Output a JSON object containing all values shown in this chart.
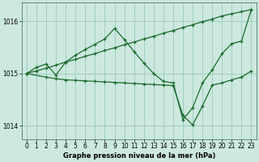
{
  "background_color": "#cce8df",
  "grid_color": "#99ccbb",
  "line_color": "#1a6b2a",
  "xlabel": "Graphe pression niveau de la mer (hPa)",
  "xlim": [
    -0.5,
    23.5
  ],
  "ylim": [
    1013.75,
    1016.35
  ],
  "yticks": [
    1014,
    1015,
    1016
  ],
  "xticks": [
    0,
    1,
    2,
    3,
    4,
    5,
    6,
    7,
    8,
    9,
    10,
    11,
    12,
    13,
    14,
    15,
    16,
    17,
    18,
    19,
    20,
    21,
    22,
    23
  ],
  "line1_x": [
    0,
    1,
    2,
    3,
    4,
    5,
    6,
    7,
    8,
    9,
    10,
    11,
    12,
    13,
    14,
    15,
    16,
    17,
    18,
    19,
    20,
    21,
    22,
    23
  ],
  "line1_y": [
    1015.0,
    1015.05,
    1015.1,
    1015.16,
    1015.22,
    1015.27,
    1015.33,
    1015.38,
    1015.44,
    1015.49,
    1015.55,
    1015.6,
    1015.66,
    1015.71,
    1015.77,
    1015.82,
    1015.88,
    1015.93,
    1015.99,
    1016.04,
    1016.1,
    1016.14,
    1016.18,
    1016.22
  ],
  "line2_x": [
    0,
    1,
    2,
    3,
    4,
    5,
    6,
    7,
    8,
    9,
    10,
    11,
    12,
    13,
    14,
    15,
    16,
    17,
    18,
    19,
    20,
    21,
    22,
    23
  ],
  "line2_y": [
    1015.0,
    1015.12,
    1015.18,
    1014.97,
    1015.22,
    1015.35,
    1015.46,
    1015.56,
    1015.66,
    1015.86,
    1015.65,
    1015.42,
    1015.2,
    1015.0,
    1014.85,
    1014.82,
    1014.12,
    1014.35,
    1014.82,
    1015.07,
    1015.38,
    1015.57,
    1015.62,
    1016.22
  ],
  "line3_x": [
    0,
    2,
    3,
    4,
    5,
    6,
    7,
    8,
    9,
    10,
    11,
    12,
    13,
    14,
    15,
    16,
    17,
    18,
    19,
    20,
    21,
    22,
    23
  ],
  "line3_y": [
    1015.0,
    1014.93,
    1014.9,
    1014.88,
    1014.87,
    1014.86,
    1014.85,
    1014.84,
    1014.83,
    1014.82,
    1014.81,
    1014.8,
    1014.79,
    1014.78,
    1014.77,
    1014.2,
    1014.02,
    1014.38,
    1014.78,
    1014.82,
    1014.88,
    1014.93,
    1015.05
  ],
  "marker_size": 3,
  "linewidth": 0.9
}
